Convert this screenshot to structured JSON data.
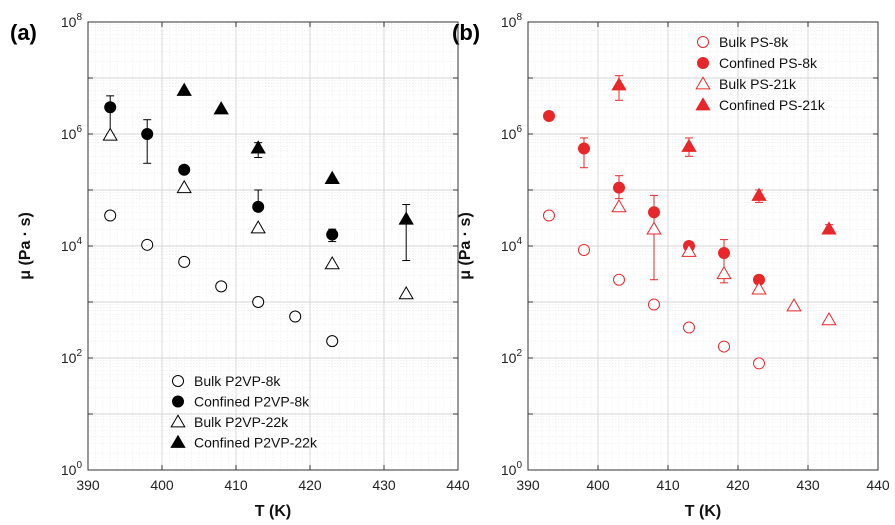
{
  "chart_data": [
    {
      "type": "scatter",
      "panel_label": "(a)",
      "xlabel": "T (K)",
      "ylabel": "μ (Pa · s)",
      "xlim": [
        390,
        440
      ],
      "ylim": [
        1,
        100000000
      ],
      "yscale": "log",
      "grid": true,
      "legend_position": "bottom-center",
      "color": "#000000",
      "xticks": [
        "390",
        "400",
        "410",
        "420",
        "430",
        "440"
      ],
      "series": [
        {
          "name": "Bulk P2VP-8k",
          "marker": "circle",
          "filled": false,
          "x": [
            393,
            398,
            403,
            408,
            413,
            418,
            423
          ],
          "y": [
            35000,
            10500,
            5200,
            1900,
            1000,
            550,
            200
          ]
        },
        {
          "name": "Confined P2VP-8k",
          "marker": "circle",
          "filled": true,
          "x": [
            393,
            398,
            403,
            413,
            423
          ],
          "y": [
            3000000,
            1000000,
            230000,
            50000,
            16000
          ],
          "err_low": [
            1000000,
            300000,
            null,
            45000,
            12000
          ],
          "err_high": [
            4800000,
            1800000,
            null,
            100000,
            20000
          ]
        },
        {
          "name": "Bulk P2VP-22k",
          "marker": "triangle",
          "filled": false,
          "x": [
            393,
            403,
            413,
            423,
            433
          ],
          "y": [
            950000,
            110000,
            21000,
            4800,
            1400
          ]
        },
        {
          "name": "Confined P2VP-22k",
          "marker": "triangle",
          "filled": true,
          "x": [
            403,
            408,
            413,
            423,
            433
          ],
          "y": [
            6000000,
            2800000,
            560000,
            160000,
            30000
          ],
          "err_low": [
            null,
            null,
            380000,
            null,
            5500
          ],
          "err_high": [
            null,
            null,
            700000,
            null,
            55000
          ]
        }
      ]
    },
    {
      "type": "scatter",
      "panel_label": "(b)",
      "xlabel": "T (K)",
      "ylabel": "μ (Pa · s)",
      "xlim": [
        390,
        440
      ],
      "ylim": [
        1,
        100000000
      ],
      "yscale": "log",
      "grid": true,
      "legend_position": "top-right",
      "color": "#e8272a",
      "xticks": [
        "390",
        "400",
        "410",
        "420",
        "430",
        "440"
      ],
      "series": [
        {
          "name": "Bulk PS-8k",
          "marker": "circle",
          "filled": false,
          "x": [
            393,
            398,
            403,
            408,
            413,
            418,
            423
          ],
          "y": [
            35000,
            8500,
            2500,
            900,
            350,
            160,
            80
          ]
        },
        {
          "name": "Confined PS-8k",
          "marker": "circle",
          "filled": true,
          "x": [
            393,
            398,
            403,
            408,
            413,
            418,
            423
          ],
          "y": [
            2100000,
            550000,
            110000,
            40000,
            10000,
            7500,
            2500
          ],
          "err_low": [
            null,
            250000,
            70000,
            2500,
            null,
            2200,
            null
          ],
          "err_high": [
            null,
            850000,
            180000,
            80000,
            null,
            13000,
            null
          ]
        },
        {
          "name": "Bulk PS-21k",
          "marker": "triangle",
          "filled": false,
          "x": [
            403,
            408,
            413,
            418,
            423,
            428,
            433
          ],
          "y": [
            50000,
            20000,
            8000,
            3200,
            1700,
            850,
            480
          ]
        },
        {
          "name": "Confined PS-21k",
          "marker": "triangle",
          "filled": true,
          "x": [
            403,
            413,
            423,
            433
          ],
          "y": [
            7500000,
            600000,
            80000,
            20000
          ],
          "err_low": [
            4000000,
            400000,
            60000,
            17000
          ],
          "err_high": [
            11000000,
            850000,
            100000,
            24000
          ]
        }
      ]
    }
  ]
}
